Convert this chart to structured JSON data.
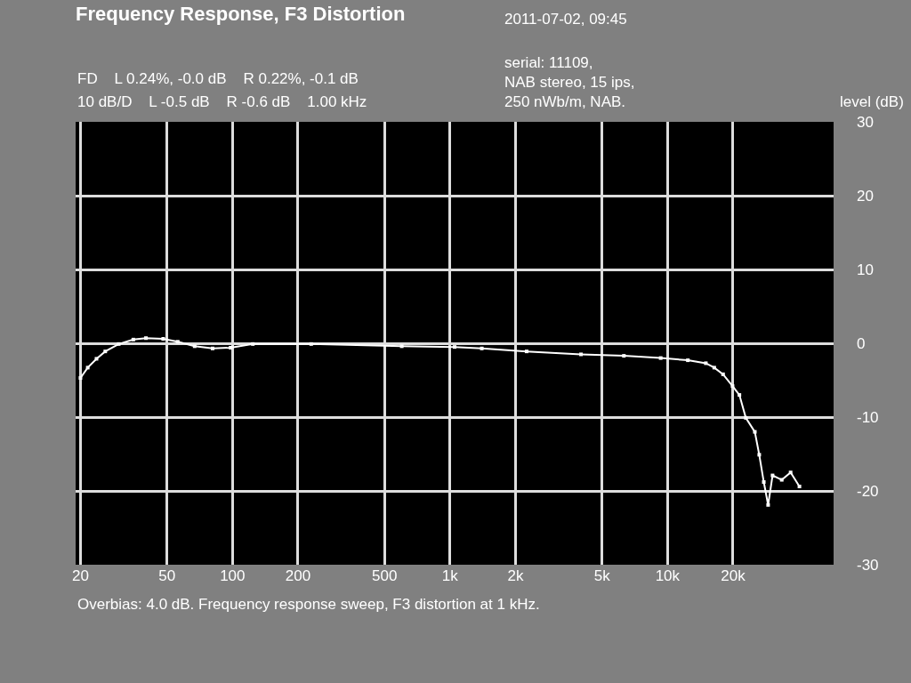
{
  "chart_data": {
    "type": "line",
    "title": "Frequency Response, F3 Distortion",
    "ylabel": "level (dB)",
    "annotations": [
      "2011-07-02, 09:45",
      "FD    L 0.24%, -0.0 dB    R 0.22%, -0.1 dB",
      "10 dB/D    L -0.5 dB    R -0.6 dB    1.00 kHz",
      "serial: 11109,\nNAB stereo, 15 ips,\n250 nWb/m, NAB.",
      "Overbias: 4.0 dB. Frequency response sweep, F3 distortion at 1 kHz."
    ],
    "log": "x",
    "grid": true,
    "legend": false,
    "marker": "square",
    "line_style": "solid",
    "xlim": [
      19,
      58000
    ],
    "ylim": [
      -30,
      30
    ],
    "xticks": [
      20,
      50,
      100,
      200,
      500,
      {
        "value": 1000,
        "label": "1k"
      },
      {
        "value": 2000,
        "label": "2k"
      },
      {
        "value": 5000,
        "label": "5k"
      },
      {
        "value": 10000,
        "label": "10k"
      },
      {
        "value": 20000,
        "label": "20k"
      }
    ],
    "yticks": [
      -30,
      -20,
      -10,
      0,
      10,
      20,
      30
    ],
    "series": [
      {
        "color": "#ffffff",
        "x": [
          20,
          21.6,
          23.7,
          26,
          30,
          35,
          40,
          48,
          56,
          67,
          81,
          98,
          124,
          230,
          600,
          1050,
          1400,
          2250,
          4000,
          6300,
          9300,
          12400,
          15000,
          16400,
          18000,
          19900,
          21400,
          22900,
          25200,
          26400,
          27700,
          29000,
          30400,
          33500,
          36800,
          40400
        ],
        "values": [
          -4.7,
          -3.3,
          -2.1,
          -1.1,
          -0.1,
          0.5,
          0.7,
          0.6,
          0.2,
          -0.4,
          -0.7,
          -0.6,
          -0.1,
          -0.1,
          -0.4,
          -0.5,
          -0.7,
          -1.1,
          -1.5,
          -1.7,
          -2.0,
          -2.3,
          -2.7,
          -3.3,
          -4.2,
          -5.8,
          -7.0,
          -10.1,
          -12.0,
          -15.1,
          -18.8,
          -21.9,
          -17.9,
          -18.5,
          -17.5,
          -19.4
        ]
      }
    ]
  }
}
